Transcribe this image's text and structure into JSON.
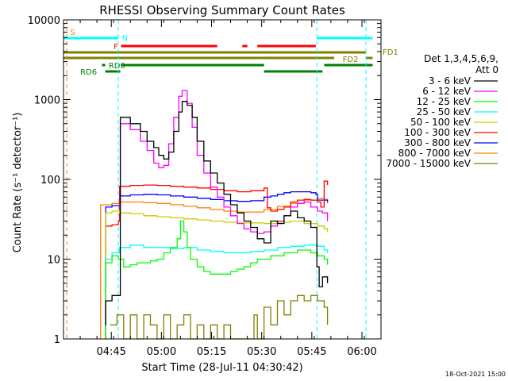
{
  "chart_data": {
    "type": "line",
    "title": "RHESSI Observing Summary Count Rates",
    "xlabel": "Start Time (28-Jul-11 04:30:42)",
    "ylabel": "Count Rate (s⁻¹ detector⁻¹)",
    "yscale": "log",
    "ylim": [
      1,
      10000
    ],
    "xlim_minutes": [
      0,
      95
    ],
    "x_tick_labels": [
      "04:45",
      "05:00",
      "05:15",
      "05:30",
      "05:45",
      "06:00"
    ],
    "x_tick_minutes": [
      14.3,
      29.3,
      44.3,
      59.3,
      74.3,
      89.3
    ],
    "y_tick_labels": [
      "1",
      "10",
      "100",
      "1000",
      "10000"
    ],
    "y_tick_values": [
      1,
      10,
      100,
      1000,
      10000
    ],
    "legend_title_line1": "Det 1,3,4,5,6,9,",
    "legend_title_line2": "Att 0",
    "legend_placement": "right",
    "footer_date": "18-Oct-2021 15:00",
    "series": [
      {
        "name": "3 - 6 keV",
        "color": "#000000",
        "x": [
          0,
          12.5,
          12.6,
          14.5,
          16.4,
          17.0,
          20,
          23,
          25,
          27,
          28.5,
          30,
          31.5,
          33,
          34.5,
          35.5,
          37,
          38.5,
          40,
          42,
          44,
          46,
          48,
          50,
          52,
          54,
          56,
          58,
          60,
          62,
          64,
          66,
          68,
          70,
          72,
          74,
          75.8,
          76.5,
          77.5,
          79,
          79.5
        ],
        "values": [
          null,
          1.5,
          3,
          3.5,
          3.5,
          600,
          500,
          400,
          300,
          250,
          200,
          180,
          220,
          400,
          700,
          950,
          850,
          600,
          300,
          170,
          120,
          90,
          65,
          48,
          38,
          30,
          25,
          18,
          16,
          30,
          28,
          35,
          40,
          33,
          30,
          25,
          8,
          4.5,
          6,
          5,
          null
        ]
      },
      {
        "name": "6 - 12 keV",
        "color": "#ff00ff",
        "x": [
          0,
          16.4,
          17.0,
          20,
          23,
          25,
          27,
          28.5,
          30,
          31.5,
          33,
          34.5,
          35.5,
          37,
          38.5,
          40,
          42,
          44,
          46,
          48,
          50,
          52,
          54,
          56,
          58,
          60,
          62,
          64,
          66,
          68,
          70,
          72,
          74,
          76,
          77.5,
          79,
          79.5
        ],
        "values": [
          null,
          50,
          500,
          420,
          300,
          230,
          160,
          140,
          150,
          280,
          600,
          1100,
          1300,
          900,
          450,
          200,
          120,
          80,
          60,
          45,
          35,
          28,
          24,
          22,
          21,
          22,
          26,
          30,
          35,
          45,
          50,
          52,
          45,
          40,
          38,
          30,
          null
        ]
      },
      {
        "name": "12 - 25 keV",
        "color": "#00ff00",
        "x": [
          0,
          12.5,
          12.6,
          14.5,
          16.4,
          16.8,
          18,
          20,
          22,
          24,
          26,
          28,
          30,
          32,
          34,
          35,
          36,
          37,
          38,
          40,
          42,
          44,
          46,
          48,
          50,
          52,
          54,
          56,
          58,
          60,
          62,
          64,
          66,
          68,
          70,
          72,
          74,
          76,
          78,
          79,
          79.5
        ],
        "values": [
          null,
          1,
          9,
          11,
          10,
          10,
          8,
          8.5,
          9,
          9,
          9.5,
          10,
          12,
          14,
          18,
          30,
          22,
          14,
          10,
          8,
          7,
          6.5,
          6.5,
          6.5,
          7,
          7.5,
          8,
          9,
          10,
          10,
          11,
          11,
          12,
          12,
          13,
          13,
          12,
          11,
          10,
          8.5,
          null
        ]
      },
      {
        "name": "25 - 50 keV",
        "color": "#00ffff",
        "x": [
          0,
          12.5,
          12.6,
          14.5,
          16.4,
          16.8,
          20,
          24,
          28,
          32,
          36,
          40,
          44,
          48,
          52,
          56,
          60,
          64,
          68,
          72,
          76,
          78,
          79,
          79.5
        ],
        "values": [
          null,
          1,
          10,
          12,
          12,
          14,
          15,
          14,
          14,
          13.5,
          14,
          13,
          12.5,
          12,
          12,
          12.5,
          13,
          14,
          14.5,
          15,
          14.5,
          13,
          12,
          null
        ]
      },
      {
        "name": "50 - 100 keV",
        "color": "#cccc00",
        "x": [
          0,
          12.5,
          12.6,
          14.5,
          16.4,
          16.8,
          20,
          24,
          28,
          32,
          36,
          40,
          44,
          48,
          52,
          56,
          60,
          64,
          68,
          72,
          76,
          78,
          79,
          79.5
        ],
        "values": [
          null,
          1,
          38,
          40,
          40,
          38,
          37,
          35,
          34,
          33,
          32,
          31,
          30,
          29,
          28.5,
          28.5,
          28,
          29,
          30,
          28,
          26,
          24,
          22,
          null
        ]
      },
      {
        "name": "100 - 300 keV",
        "color": "#ff0000",
        "x": [
          0,
          12.5,
          12.6,
          14.5,
          16.4,
          16.8,
          20,
          24,
          28,
          32,
          36,
          40,
          44,
          48,
          52,
          56,
          60,
          61,
          62,
          64,
          66,
          68,
          70,
          72,
          74,
          76,
          77,
          78,
          79,
          79.5
        ],
        "values": [
          null,
          1,
          26,
          27,
          30,
          82,
          84,
          85,
          84,
          82,
          80,
          78,
          75,
          72,
          70,
          72,
          78,
          44,
          40,
          42,
          45,
          52,
          55,
          56,
          55,
          52,
          45,
          95,
          85,
          null
        ]
      },
      {
        "name": "300 - 800 keV",
        "color": "#0000ff",
        "x": [
          0,
          12.5,
          12.6,
          14.5,
          16.4,
          16.8,
          20,
          24,
          28,
          32,
          36,
          40,
          44,
          48,
          52,
          56,
          60,
          62,
          64,
          66,
          68,
          70,
          72,
          74,
          75.5,
          76,
          78,
          79,
          79.5
        ],
        "values": [
          null,
          1,
          45,
          47,
          47,
          62,
          64,
          65,
          64,
          62,
          60,
          58,
          56,
          54,
          53,
          54,
          60,
          62,
          65,
          68,
          70,
          70,
          70,
          68,
          65,
          55,
          55,
          52,
          null
        ]
      },
      {
        "name": "800 - 7000 keV",
        "color": "#ff8000",
        "x": [
          0,
          11,
          11.1,
          14.5,
          16.4,
          16.8,
          20,
          24,
          28,
          32,
          36,
          40,
          44,
          48,
          52,
          56,
          60,
          64,
          68,
          72,
          76,
          78,
          79,
          79.5
        ],
        "values": [
          null,
          1,
          48,
          50,
          50,
          52,
          52,
          51,
          50,
          48,
          46,
          44,
          42,
          40,
          39,
          39,
          42,
          46,
          50,
          55,
          58,
          56,
          50,
          null
        ]
      },
      {
        "name": "7000 - 15000 keV",
        "color": "#808000",
        "x": [
          0,
          14,
          16,
          18,
          20,
          22,
          24,
          26,
          28,
          30,
          32,
          34,
          36,
          38,
          40,
          42,
          44,
          46,
          48,
          50,
          52,
          54,
          56,
          57,
          58,
          60,
          62,
          64,
          66,
          68,
          70,
          72,
          74,
          76,
          78,
          79
        ],
        "values": [
          null,
          1.5,
          2,
          1,
          2,
          1,
          2,
          1.5,
          1,
          2,
          1,
          1.5,
          2,
          1,
          1.5,
          1,
          1.5,
          1,
          1.5,
          1,
          1,
          1,
          1,
          2,
          1,
          2.5,
          1.5,
          3,
          2,
          3,
          3.5,
          3,
          3.5,
          3,
          2.5,
          1.5
        ]
      }
    ],
    "flags": [
      {
        "label": "S",
        "color": "#ff8000"
      },
      {
        "label": "N",
        "color": "#00ffff"
      },
      {
        "label": "F",
        "color": "#ff0000"
      },
      {
        "label": "FD1",
        "color": "#808000"
      },
      {
        "label": "FD2",
        "color": "#808000"
      },
      {
        "label": "RD0",
        "color": "#008000"
      },
      {
        "label": "RD6",
        "color": "#008000"
      }
    ]
  }
}
